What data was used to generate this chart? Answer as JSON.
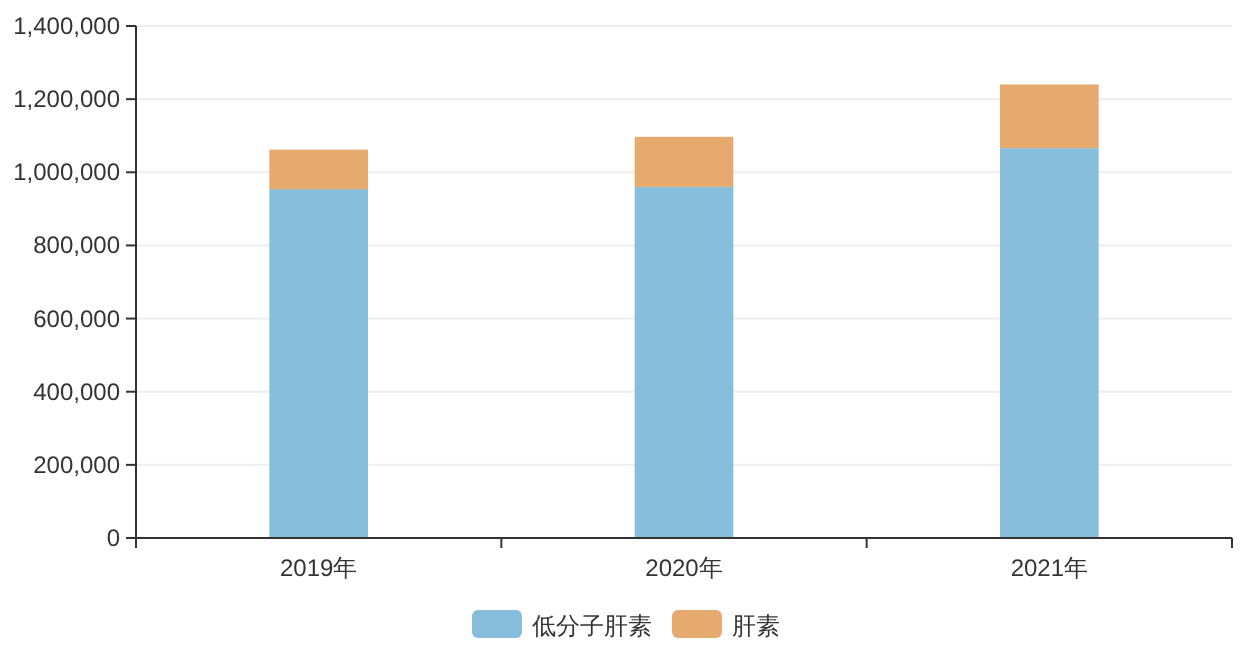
{
  "chart_data": {
    "type": "bar",
    "stacked": true,
    "categories": [
      "2019年",
      "2020年",
      "2021年"
    ],
    "series": [
      {
        "name": "低分子肝素",
        "color": "#86bedc",
        "values": [
          954000,
          960000,
          1066000
        ]
      },
      {
        "name": "肝素",
        "color": "#e6aa6e",
        "values": [
          108000,
          137000,
          174000
        ]
      }
    ],
    "ylim": [
      0,
      1400000
    ],
    "yticks": [
      {
        "value": 0,
        "label": "0"
      },
      {
        "value": 200000,
        "label": "200,000"
      },
      {
        "value": 400000,
        "label": "400,000"
      },
      {
        "value": 600000,
        "label": "600,000"
      },
      {
        "value": 800000,
        "label": "800,000"
      },
      {
        "value": 1000000,
        "label": "1,000,000"
      },
      {
        "value": 1200000,
        "label": "1,200,000"
      },
      {
        "value": 1400000,
        "label": "1,400,000"
      }
    ],
    "grid": "y",
    "legend": "bottom"
  }
}
